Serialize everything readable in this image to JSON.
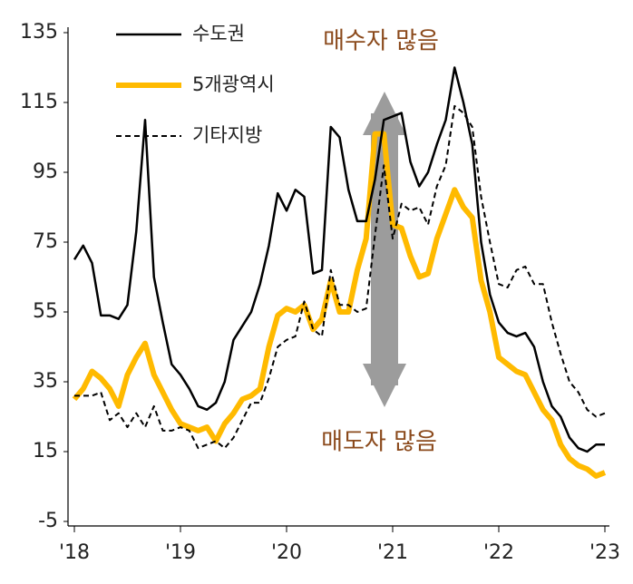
{
  "chart_data": {
    "type": "line",
    "categories": [
      "'18",
      null,
      null,
      null,
      null,
      null,
      null,
      null,
      null,
      null,
      null,
      null,
      "'19",
      null,
      null,
      null,
      null,
      null,
      null,
      null,
      null,
      null,
      null,
      null,
      "'20",
      null,
      null,
      null,
      null,
      null,
      null,
      null,
      null,
      null,
      null,
      null,
      "'21",
      null,
      null,
      null,
      null,
      null,
      null,
      null,
      null,
      null,
      null,
      null,
      "'22",
      null,
      null,
      null,
      null,
      null,
      null,
      null,
      null,
      null,
      null,
      null,
      "'23"
    ],
    "series": [
      {
        "name": "수도권",
        "color": "#000000",
        "dashed": false,
        "values": [
          70,
          74,
          69,
          54,
          54,
          53,
          57,
          78,
          110,
          65,
          52,
          40,
          37,
          33,
          28,
          27,
          29,
          35,
          47,
          51,
          55,
          63,
          74,
          89,
          84,
          90,
          88,
          66,
          67,
          108,
          105,
          90,
          81,
          81,
          93,
          110,
          111,
          112,
          98,
          91,
          95,
          103,
          110,
          125,
          115,
          103,
          75,
          60,
          52,
          49,
          48,
          49,
          45,
          35,
          28,
          25,
          19,
          16,
          15,
          17,
          17
        ]
      },
      {
        "name": "5개광역시",
        "color": "#ffba00",
        "dashed": false,
        "values": [
          30,
          33,
          38,
          36,
          33,
          28,
          37,
          42,
          46,
          37,
          32,
          27,
          23,
          22,
          21,
          22,
          18,
          23,
          26,
          30,
          31,
          33,
          45,
          54,
          56,
          55,
          57,
          50,
          53,
          64,
          55,
          55,
          67,
          76,
          106,
          106,
          80,
          79,
          71,
          65,
          66,
          76,
          83,
          90,
          85,
          82,
          64,
          55,
          42,
          40,
          38,
          37,
          32,
          27,
          24,
          17,
          13,
          11,
          10,
          8,
          9
        ]
      },
      {
        "name": "기타지방",
        "color": "#000000",
        "dashed": true,
        "values": [
          31,
          31,
          31,
          32,
          24,
          26,
          22,
          26,
          22,
          28,
          21,
          21,
          22,
          21,
          16,
          17,
          18,
          16,
          19,
          24,
          29,
          29,
          36,
          45,
          47,
          48,
          58,
          50,
          48,
          67,
          57,
          57,
          55,
          56,
          77,
          97,
          76,
          86,
          84,
          85,
          80,
          91,
          97,
          114,
          112,
          108,
          88,
          75,
          63,
          62,
          67,
          68,
          63,
          63,
          52,
          43,
          35,
          32,
          27,
          25,
          26
        ]
      }
    ],
    "ylim": [
      -5,
      135
    ],
    "yticks": [
      -5,
      15,
      35,
      55,
      75,
      95,
      115,
      135
    ],
    "annotations": [
      "매수자 많음",
      "매도자 많음"
    ]
  }
}
